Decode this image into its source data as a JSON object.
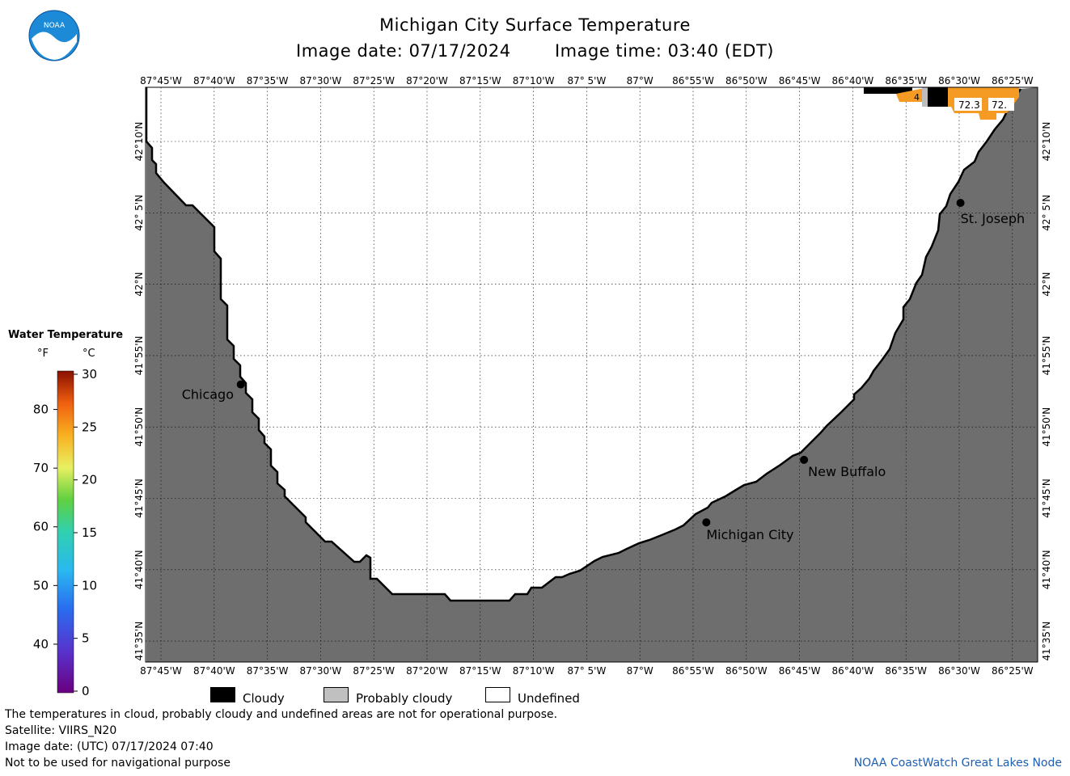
{
  "header": {
    "title": "Michigan City Surface Temperature",
    "image_date": "Image date: 07/17/2024",
    "image_time": "Image time: 03:40 (EDT)"
  },
  "logo": {
    "text": "NOAA",
    "icon": "noaa-logo-icon"
  },
  "map": {
    "land_color": "#6e6e6e",
    "water_color": "#ffffff",
    "lon_labels": [
      "87°45'W",
      "87°40'W",
      "87°35'W",
      "87°30'W",
      "87°25'W",
      "87°20'W",
      "87°15'W",
      "87°10'W",
      "87° 5'W",
      "87°W",
      "86°55'W",
      "86°50'W",
      "86°45'W",
      "86°40'W",
      "86°35'W",
      "86°30'W",
      "86°25'W"
    ],
    "lat_labels": [
      "42°10'N",
      "42° 5'N",
      "42°N",
      "41°55'N",
      "41°50'N",
      "41°45'N",
      "41°40'N",
      "41°35'N"
    ],
    "cities": [
      {
        "name": "Chicago",
        "lon": -87.625,
        "lat": 41.883
      },
      {
        "name": "St. Joseph",
        "lon": -86.498,
        "lat": 42.095
      },
      {
        "name": "New Buffalo",
        "lon": -86.743,
        "lat": 41.795
      },
      {
        "name": "Michigan City",
        "lon": -86.896,
        "lat": 41.722
      }
    ],
    "temperature_labels": [
      "72.3",
      "72.",
      "4"
    ]
  },
  "legend": {
    "title": "Water Temperature",
    "unit_f": "°F",
    "unit_c": "°C",
    "f_ticks": [
      "40",
      "50",
      "60",
      "70",
      "80"
    ],
    "c_ticks": [
      "0",
      "5",
      "10",
      "15",
      "20",
      "25",
      "30"
    ]
  },
  "key": {
    "cloudy": "Cloudy",
    "probably_cloudy": "Probably cloudy",
    "undefined": "Undefined",
    "cloudy_color": "#000000",
    "probably_cloudy_color": "#c0c0c0",
    "undefined_color": "#ffffff"
  },
  "footer": {
    "disclaimer": "The temperatures in cloud, probably cloudy and undefined areas are not for operational purpose.",
    "satellite": "Satellite: VIIRS_N20",
    "utc_date": "Image date: (UTC) 07/17/2024  07:40",
    "nav_warning": "Not to be used for navigational purpose",
    "credit": "NOAA CoastWatch Great Lakes Node"
  }
}
